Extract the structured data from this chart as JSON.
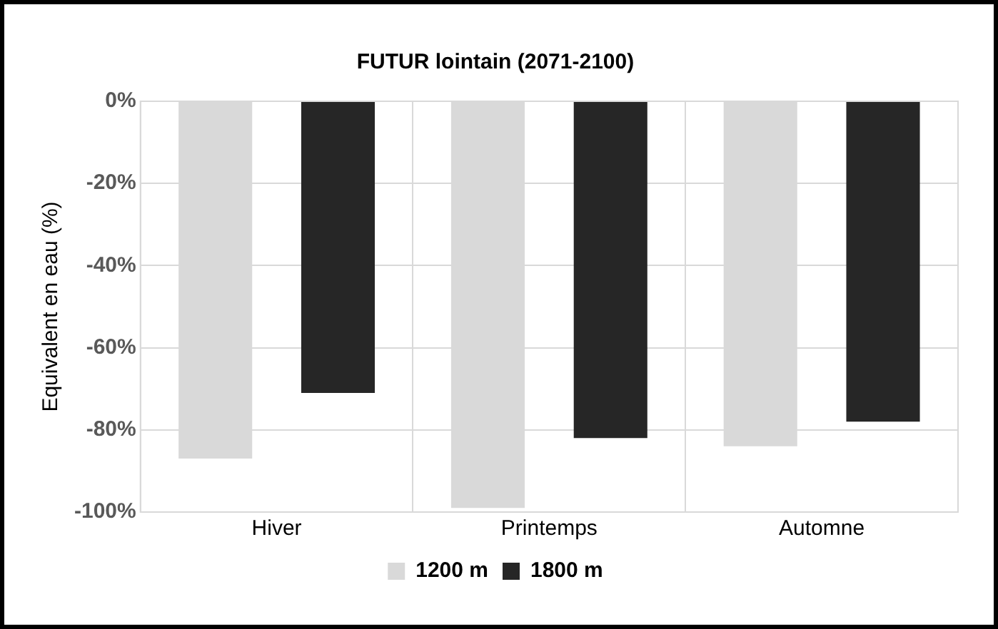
{
  "chart_data": {
    "type": "bar",
    "title": "FUTUR lointain (2071-2100)",
    "ylabel": "Equivalent en eau (%)",
    "categories": [
      "Hiver",
      "Printemps",
      "Automne"
    ],
    "series": [
      {
        "name": "1200 m",
        "color": "#d9d9d9",
        "values": [
          -87,
          -99,
          -84
        ]
      },
      {
        "name": "1800 m",
        "color": "#262626",
        "values": [
          -71,
          -82,
          -78
        ]
      }
    ],
    "ylim": [
      -100,
      0
    ],
    "yticks": [
      {
        "value": 0,
        "label": "0%"
      },
      {
        "value": -20,
        "label": "-20%"
      },
      {
        "value": -40,
        "label": "-40%"
      },
      {
        "value": -60,
        "label": "-60%"
      },
      {
        "value": -80,
        "label": "-80%"
      },
      {
        "value": -100,
        "label": "-100%"
      }
    ],
    "grid": true,
    "legend": "bottom"
  }
}
